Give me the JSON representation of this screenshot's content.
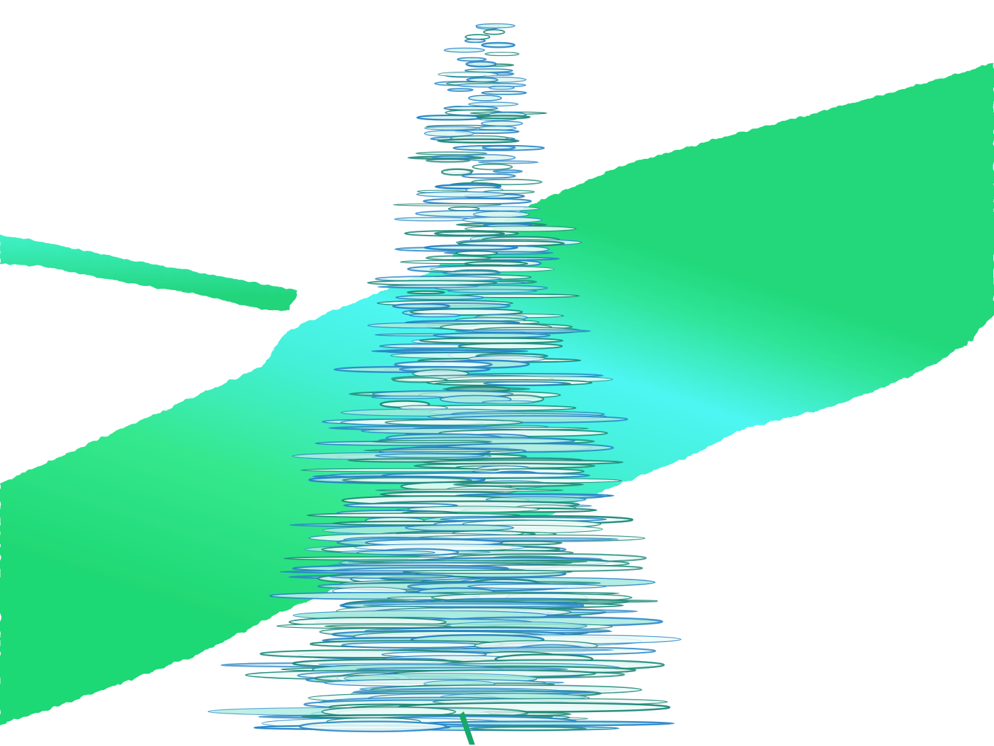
{
  "scene": {
    "kind": "3d-isosurface-render",
    "background_color": "#ffffff",
    "colors": {
      "tube_green": "#2fe38a",
      "tube_cyan": "#3ff2ee",
      "tube_dark": "#17a86a",
      "streak_white": "#eefcf8",
      "streak_teal": "#1f8a7a",
      "streak_blue": "#2a86c8"
    }
  }
}
